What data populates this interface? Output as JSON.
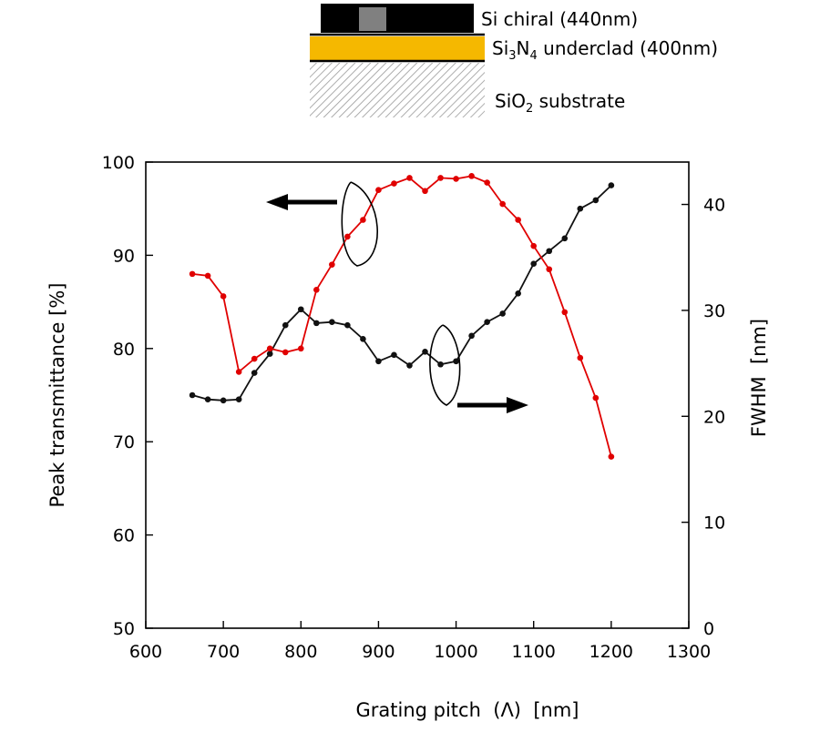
{
  "colors": {
    "transmittance": "#e00000",
    "fwhm": "#111111",
    "underclad": "#f5b800",
    "chiral_block": "#000000",
    "chiral_inset": "#808080",
    "substrate_hatch": "#9a9a9a"
  },
  "structure": {
    "layers": [
      {
        "id": "si",
        "parts": [
          {
            "t": "Si chiral (440nm)",
            "sub": false
          }
        ]
      },
      {
        "id": "sin",
        "parts": [
          {
            "t": "Si",
            "sub": false
          },
          {
            "t": "3",
            "sub": true
          },
          {
            "t": "N",
            "sub": false
          },
          {
            "t": "4",
            "sub": true
          },
          {
            "t": " underclad (400nm)",
            "sub": false
          }
        ]
      },
      {
        "id": "sio2",
        "parts": [
          {
            "t": "SiO",
            "sub": false
          },
          {
            "t": "2",
            "sub": true
          },
          {
            "t": " substrate",
            "sub": false
          }
        ]
      }
    ]
  },
  "chart_data": {
    "type": "line",
    "title": "",
    "xlabel": "Grating pitch  (Λ)  [nm]",
    "ylabel_left": "Peak transmittance [%]",
    "ylabel_right": "FWHM  [nm]",
    "xlim": [
      600,
      1300
    ],
    "ylim_left": [
      50,
      100
    ],
    "ylim_right": [
      0,
      44
    ],
    "x_ticks": [
      600,
      700,
      800,
      900,
      1000,
      1100,
      1200,
      1300
    ],
    "y_left_ticks": [
      50,
      60,
      70,
      80,
      90,
      100
    ],
    "y_right_ticks": [
      0,
      10,
      20,
      30,
      40
    ],
    "grid": false,
    "legend": "none",
    "annotations": [
      {
        "type": "arrow",
        "points_to": "left axis",
        "series": "transmittance"
      },
      {
        "type": "arrow",
        "points_to": "right axis",
        "series": "fwhm"
      }
    ],
    "series": [
      {
        "key": "transmittance",
        "axis": "left",
        "x": [
          660,
          680,
          700,
          720,
          740,
          760,
          780,
          800,
          820,
          840,
          860,
          880,
          900,
          920,
          940,
          960,
          980,
          1000,
          1020,
          1040,
          1060,
          1080,
          1100,
          1120,
          1140,
          1160,
          1180,
          1200
        ],
        "y": [
          88.0,
          87.8,
          85.6,
          77.5,
          78.9,
          80.0,
          79.6,
          80.0,
          86.3,
          89.0,
          92.0,
          93.8,
          97.0,
          97.7,
          98.3,
          96.9,
          98.3,
          98.2,
          98.5,
          97.8,
          95.5,
          93.8,
          91.0,
          88.5,
          83.9,
          79.0,
          74.7,
          68.4
        ]
      },
      {
        "key": "fwhm",
        "axis": "right",
        "x": [
          660,
          680,
          700,
          720,
          740,
          760,
          780,
          800,
          820,
          840,
          860,
          880,
          900,
          920,
          940,
          960,
          980,
          1000,
          1020,
          1040,
          1060,
          1080,
          1100,
          1120,
          1140,
          1160,
          1180,
          1200
        ],
        "y": [
          22.0,
          21.6,
          21.5,
          21.6,
          24.1,
          25.9,
          28.6,
          30.1,
          28.8,
          28.9,
          28.6,
          27.3,
          25.2,
          25.8,
          24.8,
          26.1,
          24.9,
          25.2,
          27.6,
          28.9,
          29.7,
          31.6,
          34.4,
          35.6,
          36.8,
          39.6,
          40.4,
          41.8
        ]
      }
    ]
  }
}
